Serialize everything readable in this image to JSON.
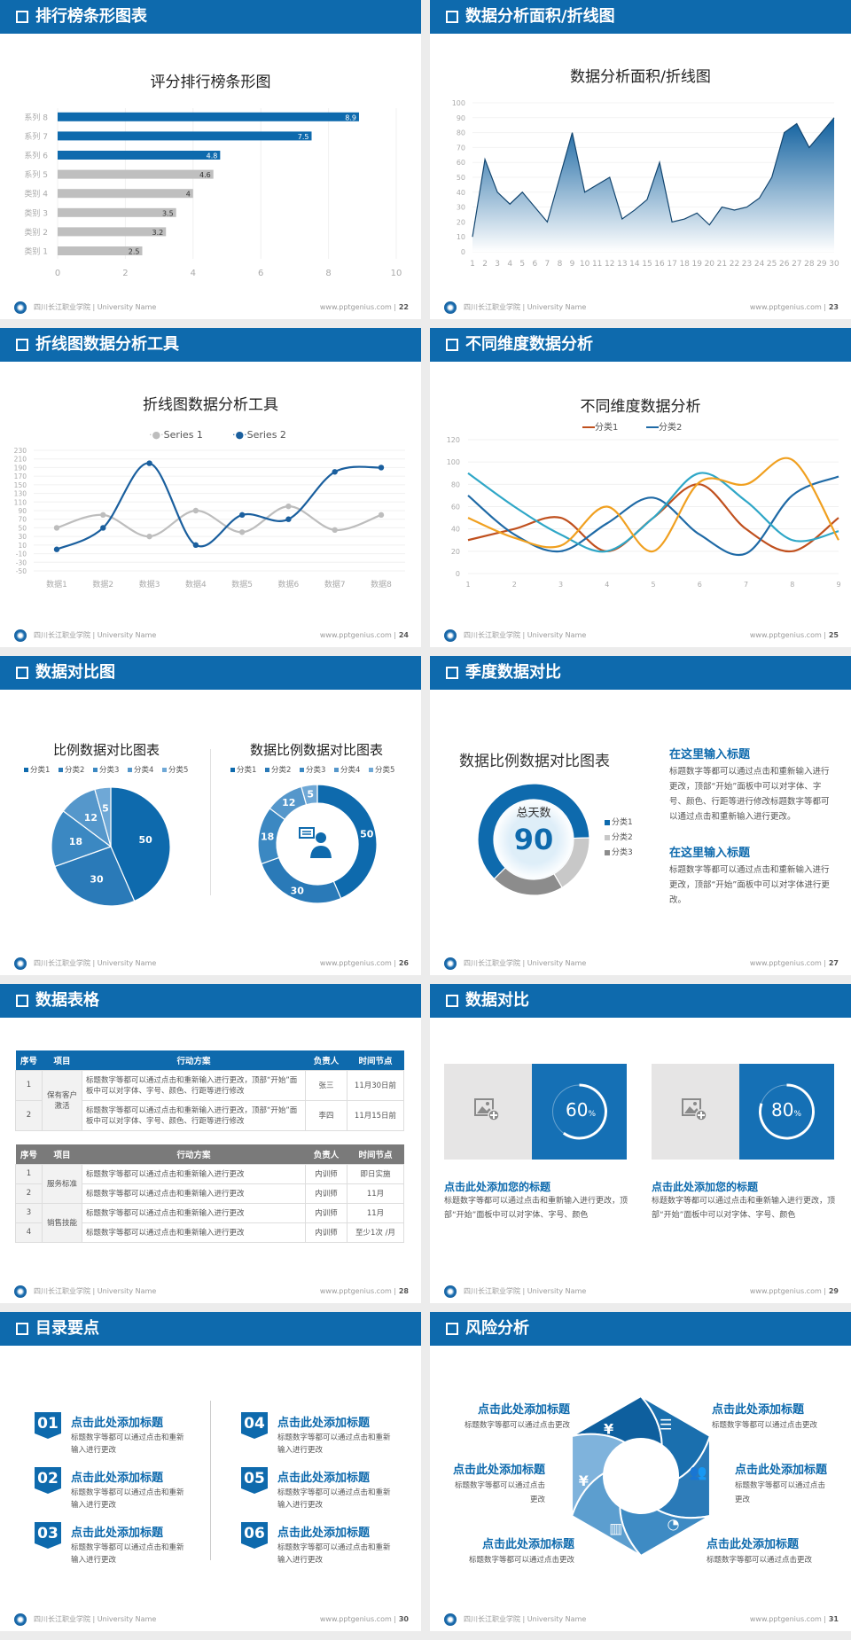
{
  "footer": {
    "school": "四川长江职业学院 | University Name",
    "site": "www.pptgenius.com  |"
  },
  "colors": {
    "brand": "#0e6aad",
    "gray": "#bfbfbf",
    "series_rust": "#c0501e",
    "series_blue": "#1f6aa6",
    "series_teal": "#2fa7c7",
    "series_orange": "#f0a020"
  },
  "slides": [
    {
      "header": "排行榜条形图表",
      "page": "22"
    },
    {
      "header": "数据分析面积/折线图",
      "page": "23"
    },
    {
      "header": "折线图数据分析工具",
      "page": "24"
    },
    {
      "header": "不同维度数据分析",
      "page": "25"
    },
    {
      "header": "数据对比图",
      "page": "26"
    },
    {
      "header": "季度数据对比",
      "page": "27",
      "blocks": [
        {
          "title": "在这里输入标题",
          "text": "标题数字等都可以通过点击和重新输入进行更改，顶部“开始”面板中可以对字体、字号、颜色、行距等进行修改标题数字等都可以通过点击和重新输入进行更改。"
        },
        {
          "title": "在这里输入标题",
          "text": "标题数字等都可以通过点击和重新输入进行更改，顶部“开始”面板中可以对字体进行更改。"
        }
      ]
    },
    {
      "header": "数据表格",
      "page": "28",
      "columns": [
        "序号",
        "项目",
        "行动方案",
        "负责人",
        "时间节点"
      ],
      "table1": {
        "groups": [
          "保有客户激活"
        ],
        "rows": [
          {
            "no": "1",
            "plan": "标题数字等都可以通过点击和重新输入进行更改，顶部“开始”面板中可以对字体、字号、颜色、行距等进行修改",
            "owner": "张三",
            "time": "11月30日前"
          },
          {
            "no": "2",
            "plan": "标题数字等都可以通过点击和重新输入进行更改，顶部“开始”面板中可以对字体、字号、颜色、行距等进行修改",
            "owner": "李四",
            "time": "11月15日前"
          }
        ]
      },
      "table2": {
        "groups": [
          "服务标准",
          "销售技能"
        ],
        "rows": [
          {
            "no": "1",
            "plan": "标题数字等都可以通过点击和重新输入进行更改",
            "owner": "内训师",
            "time": "即日实施"
          },
          {
            "no": "2",
            "plan": "标题数字等都可以通过点击和重新输入进行更改",
            "owner": "内训师",
            "time": "11月"
          },
          {
            "no": "3",
            "plan": "标题数字等都可以通过点击和重新输入进行更改",
            "owner": "内训师",
            "time": "11月"
          },
          {
            "no": "4",
            "plan": "标题数字等都可以通过点击和重新输入进行更改",
            "owner": "内训师",
            "time": "至少1次 /月"
          }
        ]
      }
    },
    {
      "header": "数据对比",
      "page": "29",
      "cards": [
        {
          "percent": 60,
          "label": "60",
          "unit": "%",
          "icon": "image-add-icon",
          "title": "点击此处添加您的标题",
          "text": "标题数字等都可以通过点击和重新输入进行更改，顶部“开始”面板中可以对字体、字号、颜色"
        },
        {
          "percent": 80,
          "label": "80",
          "unit": "%",
          "icon": "image-add-icon",
          "title": "点击此处添加您的标题",
          "text": "标题数字等都可以通过点击和重新输入进行更改，顶部“开始”面板中可以对字体、字号、颜色"
        }
      ]
    },
    {
      "header": "目录要点",
      "page": "30",
      "items": [
        {
          "num": "01",
          "title": "点击此处添加标题",
          "text": "标题数字等都可以通过点击和重新输入进行更改"
        },
        {
          "num": "02",
          "title": "点击此处添加标题",
          "text": "标题数字等都可以通过点击和重新输入进行更改"
        },
        {
          "num": "03",
          "title": "点击此处添加标题",
          "text": "标题数字等都可以通过点击和重新输入进行更改"
        },
        {
          "num": "04",
          "title": "点击此处添加标题",
          "text": "标题数字等都可以通过点击和重新输入进行更改"
        },
        {
          "num": "05",
          "title": "点击此处添加标题",
          "text": "标题数字等都可以通过点击和重新输入进行更改"
        },
        {
          "num": "06",
          "title": "点击此处添加标题",
          "text": "标题数字等都可以通过点击和重新输入进行更改"
        }
      ]
    },
    {
      "header": "风险分析",
      "page": "31",
      "items": [
        {
          "title": "点击此处添加标题",
          "text": "标题数字等都可以通过点击更改",
          "icon": "money-bag-icon"
        },
        {
          "title": "点击此处添加标题",
          "text": "标题数字等都可以通过点击更改",
          "icon": "coins-icon"
        },
        {
          "title": "点击此处添加标题",
          "text": "标题数字等都可以通过点击更改",
          "icon": "users-icon"
        },
        {
          "title": "点击此处添加标题",
          "text": "标题数字等都可以通过点击更改",
          "icon": "pie-chart-icon"
        },
        {
          "title": "点击此处添加标题",
          "text": "标题数字等都可以通过点击更改",
          "icon": "building-icon"
        },
        {
          "title": "点击此处添加标题",
          "text": "标题数字等都可以通过点击更改",
          "icon": "yen-hand-icon"
        }
      ]
    }
  ],
  "chart_data": [
    {
      "type": "bar",
      "orientation": "horizontal",
      "title": "评分排行榜条形图",
      "categories": [
        "类别 1",
        "类别 2",
        "类别 3",
        "类别 4",
        "系列 5",
        "系列 6",
        "系列 7",
        "系列 8"
      ],
      "values": [
        2.5,
        3.2,
        3.5,
        4,
        4.6,
        4.8,
        7.5,
        8.9
      ],
      "highlight_colors": [
        "#bfbfbf",
        "#bfbfbf",
        "#bfbfbf",
        "#bfbfbf",
        "#bfbfbf",
        "#0e6aad",
        "#0e6aad",
        "#0e6aad"
      ],
      "xlim": [
        0,
        10
      ],
      "xticks": [
        0,
        2,
        4,
        6,
        8,
        10
      ],
      "grid": true,
      "data_labels": true
    },
    {
      "type": "area",
      "title": "数据分析面积/折线图",
      "x": [
        1,
        2,
        3,
        4,
        5,
        6,
        7,
        8,
        9,
        10,
        11,
        12,
        13,
        14,
        15,
        16,
        17,
        18,
        19,
        20,
        21,
        22,
        23,
        24,
        25,
        26,
        27,
        28,
        29,
        30
      ],
      "values": [
        10,
        62,
        40,
        32,
        40,
        30,
        20,
        50,
        80,
        40,
        45,
        50,
        22,
        28,
        35,
        60,
        20,
        22,
        26,
        18,
        30,
        28,
        30,
        36,
        50,
        80,
        86,
        70,
        80,
        90
      ],
      "ylim": [
        0,
        100
      ],
      "yticks": [
        0,
        10,
        20,
        30,
        40,
        50,
        60,
        70,
        80,
        90,
        100
      ],
      "grid": true
    },
    {
      "type": "line",
      "title": "折线图数据分析工具",
      "smooth": true,
      "categories": [
        "数据1",
        "数据2",
        "数据3",
        "数据4",
        "数据5",
        "数据6",
        "数据7",
        "数据8"
      ],
      "series": [
        {
          "name": "Series 1",
          "color": "#bdbdbd",
          "values": [
            50,
            80,
            30,
            90,
            40,
            100,
            45,
            80
          ]
        },
        {
          "name": "Series 2",
          "color": "#1a5f9e",
          "values": [
            0,
            50,
            200,
            10,
            80,
            70,
            180,
            190
          ]
        }
      ],
      "ylim": [
        -50,
        230
      ],
      "yticks": [
        -50,
        -30,
        -10,
        10,
        30,
        50,
        70,
        90,
        110,
        130,
        150,
        170,
        190,
        210,
        230
      ],
      "legend": "top",
      "grid": true
    },
    {
      "type": "line",
      "title": "不同维度数据分析",
      "smooth": true,
      "x": [
        1,
        2,
        3,
        4,
        5,
        6,
        7,
        8,
        9
      ],
      "series": [
        {
          "name": "分类1",
          "color": "#c0501e",
          "values": [
            30,
            40,
            50,
            20,
            50,
            80,
            40,
            20,
            50
          ]
        },
        {
          "name": "分类2",
          "color": "#1f6aa6",
          "values": [
            70,
            35,
            20,
            45,
            68,
            35,
            18,
            70,
            87
          ]
        },
        {
          "color": "#2fa7c7",
          "values": [
            90,
            60,
            35,
            20,
            50,
            90,
            65,
            30,
            38
          ]
        },
        {
          "color": "#f0a020",
          "values": [
            50,
            32,
            25,
            60,
            20,
            82,
            80,
            102,
            30
          ]
        }
      ],
      "ylim": [
        0,
        120
      ],
      "yticks": [
        0,
        20,
        40,
        60,
        80,
        100,
        120
      ],
      "legend": "top",
      "grid": true
    },
    {
      "type": "pie",
      "title": "比例数据对比图表",
      "categories": [
        "分类1",
        "分类2",
        "分类3",
        "分类4",
        "分类5"
      ],
      "values": [
        50,
        30,
        18,
        12,
        5
      ],
      "colors": [
        "#0e6aad",
        "#2a7ab8",
        "#3b88c2",
        "#5597cb",
        "#6fa8d6"
      ],
      "legend": "top",
      "data_labels": true
    },
    {
      "type": "pie",
      "donut": true,
      "title": "数据比例数据对比图表",
      "categories": [
        "分类1",
        "分类2",
        "分类3",
        "分类4",
        "分类5"
      ],
      "values": [
        50,
        30,
        18,
        12,
        5
      ],
      "colors": [
        "#0e6aad",
        "#2a7ab8",
        "#3b88c2",
        "#5597cb",
        "#6fa8d6"
      ],
      "legend": "top",
      "data_labels": true,
      "center_icon": "person-chat-icon"
    },
    {
      "type": "pie",
      "donut": true,
      "title": "数据比例数据对比图表",
      "categories": [
        "分类1",
        "分类2",
        "分类3"
      ],
      "values": [
        62,
        17,
        21
      ],
      "colors": [
        "#0e6aad",
        "#c8c8c8",
        "#8c8c8c"
      ],
      "legend": "right",
      "center_label": "总天数",
      "center_value": "90"
    }
  ]
}
